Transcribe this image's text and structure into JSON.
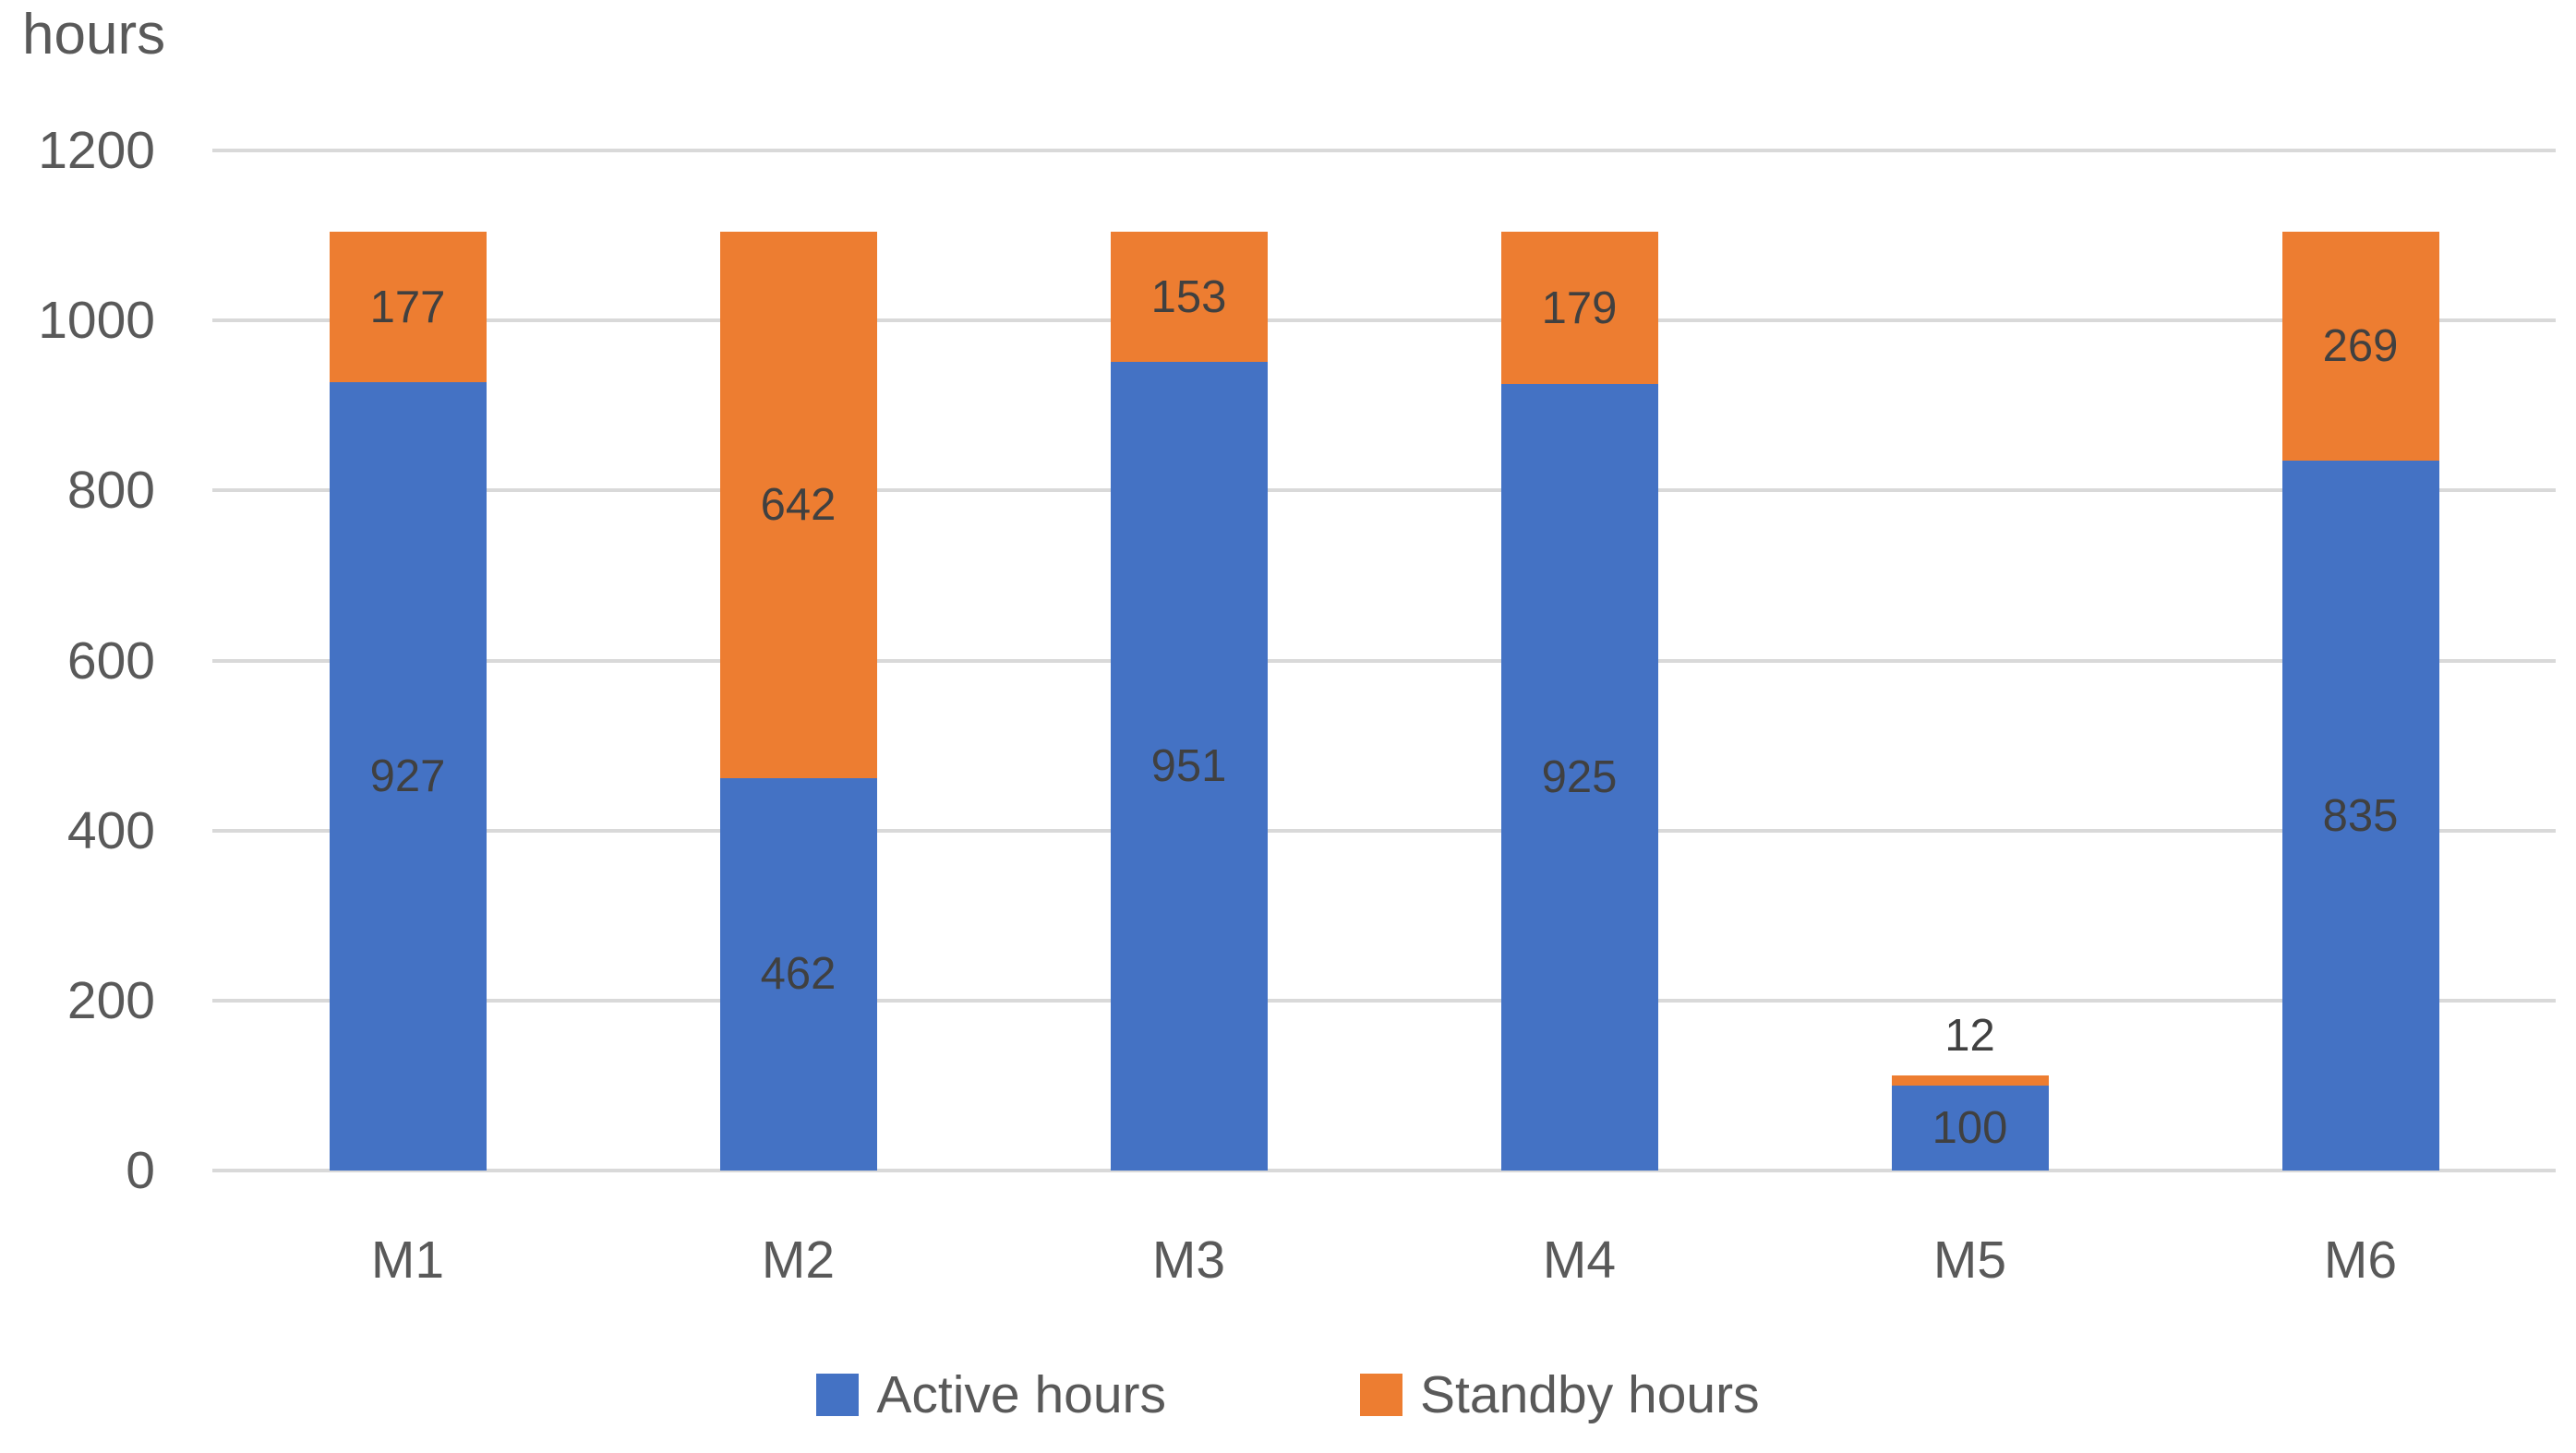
{
  "chart_data": {
    "type": "bar",
    "stacked": true,
    "title": "hours",
    "categories": [
      "M1",
      "M2",
      "M3",
      "M4",
      "M5",
      "M6"
    ],
    "series": [
      {
        "name": "Active hours",
        "color": "#4472C4",
        "values": [
          927,
          462,
          951,
          925,
          100,
          835
        ]
      },
      {
        "name": "Standby hours",
        "color": "#ED7D31",
        "values": [
          177,
          642,
          153,
          179,
          12,
          269
        ]
      }
    ],
    "totals": [
      1104,
      1104,
      1104,
      1104,
      112,
      1104
    ],
    "ylim": [
      0,
      1200
    ],
    "yticks": [
      0,
      200,
      400,
      600,
      800,
      1000,
      1200
    ],
    "grid": true,
    "legend_position": "bottom",
    "colors": {
      "gridline": "#D9D9D9",
      "axis_text": "#595959",
      "data_label": "#404040",
      "background": "#FFFFFF"
    }
  }
}
